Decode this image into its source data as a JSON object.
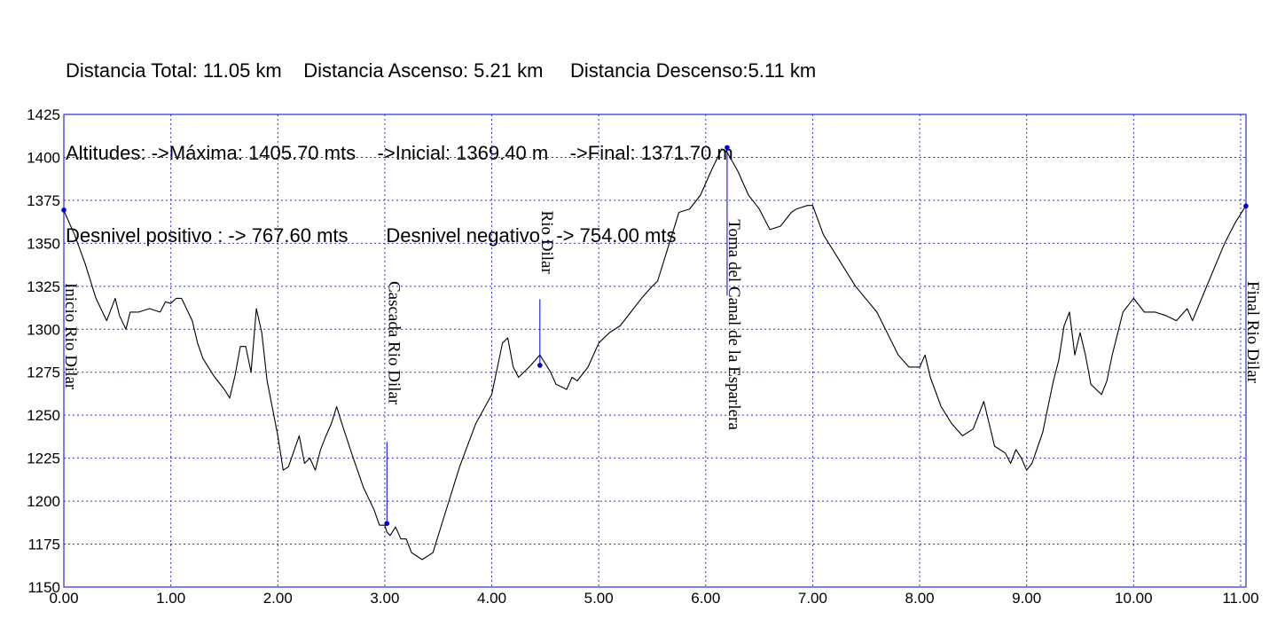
{
  "stats": {
    "line1": "Distancia Total: 11.05 km    Distancia Ascenso: 5.21 km     Distancia Descenso:5.11 km",
    "line2": "Altitudes: ->Máxima: 1405.70 mts    ->Inicial: 1369.40 m    ->Final: 1371.70 m",
    "line3": "Desnivel positivo : -> 767.60 mts       Desnivel negativo : -> 754.00 mts"
  },
  "chart_data": {
    "type": "line",
    "title": "",
    "xlabel": "",
    "ylabel": "",
    "xlim": [
      0,
      11.05
    ],
    "ylim": [
      1150,
      1425
    ],
    "x_ticks": [
      "0.00",
      "1.00",
      "2.00",
      "3.00",
      "4.00",
      "5.00",
      "6.00",
      "7.00",
      "8.00",
      "9.00",
      "10.00",
      "11.00"
    ],
    "y_ticks": [
      "1425",
      "1400",
      "1375",
      "1350",
      "1325",
      "1300",
      "1275",
      "1250",
      "1225",
      "1200",
      "1175",
      "1150"
    ],
    "grid": true,
    "colors": {
      "line": "#000000",
      "grid": "#3333cc",
      "frame": "#2a2ae0",
      "marker": "#0000cc"
    },
    "series": [
      {
        "x": [
          0.0,
          0.1,
          0.2,
          0.3,
          0.4,
          0.48,
          0.52,
          0.58,
          0.62,
          0.7,
          0.8,
          0.9,
          0.95,
          1.0,
          1.05,
          1.1,
          1.2,
          1.25,
          1.3,
          1.35,
          1.4,
          1.5,
          1.55,
          1.6,
          1.65,
          1.7,
          1.75,
          1.8,
          1.85,
          1.9,
          2.0,
          2.05,
          2.1,
          2.2,
          2.25,
          2.3,
          2.35,
          2.4,
          2.45,
          2.5,
          2.55,
          2.6,
          2.7,
          2.8,
          2.9,
          2.95,
          3.0,
          3.02,
          3.05,
          3.1,
          3.15,
          3.2,
          3.25,
          3.35,
          3.45,
          3.55,
          3.7,
          3.85,
          4.0,
          4.1,
          4.15,
          4.2,
          4.25,
          4.35,
          4.45,
          4.5,
          4.55,
          4.6,
          4.7,
          4.75,
          4.8,
          4.9,
          5.0,
          5.1,
          5.2,
          5.3,
          5.4,
          5.5,
          5.55,
          5.65,
          5.75,
          5.85,
          5.95,
          6.05,
          6.15,
          6.2,
          6.3,
          6.4,
          6.5,
          6.6,
          6.7,
          6.8,
          6.85,
          6.95,
          7.0,
          7.1,
          7.2,
          7.4,
          7.6,
          7.8,
          7.9,
          8.0,
          8.05,
          8.1,
          8.2,
          8.3,
          8.4,
          8.5,
          8.55,
          8.6,
          8.65,
          8.7,
          8.8,
          8.85,
          8.9,
          8.95,
          9.0,
          9.05,
          9.15,
          9.2,
          9.25,
          9.3,
          9.35,
          9.4,
          9.45,
          9.5,
          9.55,
          9.6,
          9.7,
          9.75,
          9.8,
          9.9,
          10.0,
          10.1,
          10.2,
          10.3,
          10.4,
          10.5,
          10.55,
          10.65,
          10.75,
          10.85,
          10.95,
          11.05
        ],
        "values": [
          1369,
          1355,
          1338,
          1318,
          1305,
          1318,
          1308,
          1300,
          1310,
          1310,
          1312,
          1310,
          1316,
          1315,
          1318,
          1318,
          1305,
          1292,
          1283,
          1278,
          1273,
          1265,
          1260,
          1273,
          1290,
          1290,
          1275,
          1312,
          1298,
          1270,
          1238,
          1218,
          1220,
          1238,
          1222,
          1225,
          1218,
          1230,
          1238,
          1245,
          1255,
          1245,
          1226,
          1208,
          1195,
          1186,
          1186,
          1182,
          1180,
          1185,
          1178,
          1178,
          1170,
          1166,
          1170,
          1190,
          1220,
          1245,
          1262,
          1292,
          1295,
          1278,
          1272,
          1278,
          1285,
          1280,
          1275,
          1268,
          1265,
          1272,
          1270,
          1278,
          1292,
          1298,
          1302,
          1310,
          1318,
          1325,
          1328,
          1348,
          1368,
          1370,
          1378,
          1392,
          1405,
          1403,
          1392,
          1378,
          1370,
          1358,
          1360,
          1368,
          1370,
          1372,
          1372,
          1355,
          1345,
          1325,
          1310,
          1285,
          1278,
          1278,
          1285,
          1272,
          1255,
          1245,
          1238,
          1242,
          1250,
          1258,
          1245,
          1232,
          1228,
          1222,
          1230,
          1225,
          1218,
          1222,
          1240,
          1255,
          1270,
          1282,
          1302,
          1310,
          1285,
          1298,
          1285,
          1268,
          1262,
          1270,
          1285,
          1310,
          1318,
          1310,
          1310,
          1308,
          1305,
          1312,
          1305,
          1320,
          1335,
          1350,
          1362,
          1372
        ]
      }
    ],
    "waypoints": [
      {
        "x": 0.0,
        "y": 1369.4,
        "label": "Inicio Rio Dilar",
        "label_top_y": 1327
      },
      {
        "x": 3.02,
        "y": 1187,
        "label": "Cascada Rio Dilar",
        "label_top_y": 1328
      },
      {
        "x": 4.45,
        "y": 1279,
        "label": "Rio Dilar",
        "label_top_y": 1369
      },
      {
        "x": 6.2,
        "y": 1405.7,
        "label": "Toma del Canal de la Esparlera",
        "label_top_y": 1364
      },
      {
        "x": 11.05,
        "y": 1371.7,
        "label": "Final Rio Dilar",
        "label_top_y": 1328
      }
    ]
  }
}
